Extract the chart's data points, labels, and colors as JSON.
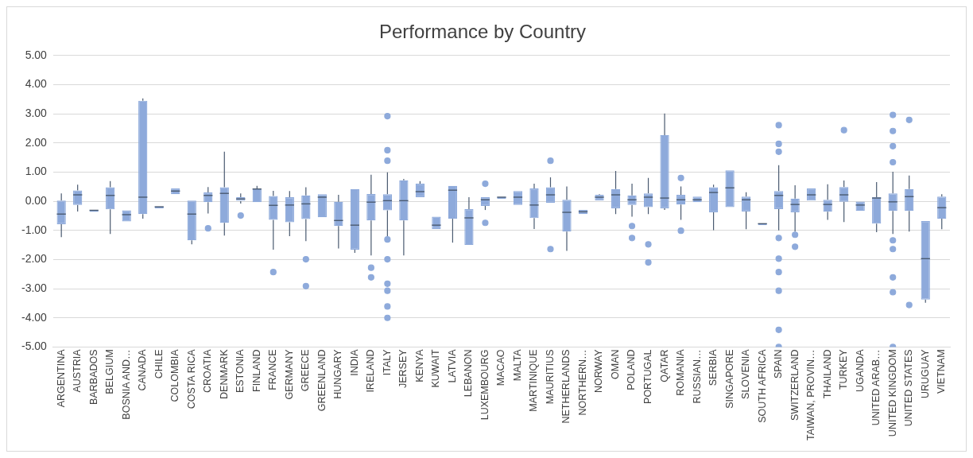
{
  "chart_data": {
    "type": "box",
    "title": "Performance by Country",
    "color": "#8eaadb",
    "categories": [
      "ARGENTINA",
      "AUSTRIA",
      "BARBADOS",
      "BELGIUM",
      "BOSNIA AND…",
      "CANADA",
      "CHILE",
      "COLOMBIA",
      "COSTA RICA",
      "CROATIA",
      "DENMARK",
      "ESTONIA",
      "FINLAND",
      "FRANCE",
      "GERMANY",
      "GREECE",
      "GREENLAND",
      "HUNGARY",
      "INDIA",
      "IRELAND",
      "ITALY",
      "JERSEY",
      "KENYA",
      "KUWAIT",
      "LATVIA",
      "LEBANON",
      "LUXEMBOURG",
      "MACAO",
      "MALTA",
      "MARTINIQUE",
      "MAURITIUS",
      "NETHERLANDS",
      "NORTHERN…",
      "NORWAY",
      "OMAN",
      "POLAND",
      "PORTUGAL",
      "QATAR",
      "ROMANIA",
      "RUSSIAN…",
      "SERBIA",
      "SINGAPORE",
      "SLOVENIA",
      "SOUTH AFRICA",
      "SPAIN",
      "SWITZERLAND",
      "TAIWAN, PROVIN…",
      "THAILAND",
      "TURKEY",
      "UGANDA",
      "UNITED ARAB…",
      "UNITED KINGDOM",
      "UNITED STATES",
      "URUGUAY",
      "VIETNAM"
    ],
    "boxes": [
      {
        "low": -1.23,
        "q1": -0.79,
        "median": -0.44,
        "q3": 0.02,
        "high": 0.27
      },
      {
        "low": -0.35,
        "q1": -0.13,
        "median": 0.22,
        "q3": 0.37,
        "high": 0.57
      },
      {
        "low": -0.31,
        "q1": -0.31,
        "median": -0.31,
        "q3": -0.31,
        "high": -0.31
      },
      {
        "low": -1.12,
        "q1": -0.28,
        "median": 0.2,
        "q3": 0.48,
        "high": 0.69
      },
      {
        "low": -0.69,
        "q1": -0.69,
        "median": -0.46,
        "q3": -0.31,
        "high": -0.31
      },
      {
        "low": -0.6,
        "q1": -0.44,
        "median": 0.14,
        "q3": 3.45,
        "high": 3.53
      },
      {
        "low": -0.19,
        "q1": -0.19,
        "median": -0.19,
        "q3": -0.19,
        "high": -0.19
      },
      {
        "low": 0.24,
        "q1": 0.24,
        "median": 0.35,
        "q3": 0.44,
        "high": 0.44
      },
      {
        "low": -1.48,
        "q1": -1.34,
        "median": -0.44,
        "q3": 0.02,
        "high": 0.02
      },
      {
        "low": -0.42,
        "q1": -0.03,
        "median": 0.2,
        "q3": 0.3,
        "high": 0.49,
        "outliers": [
          -0.93
        ]
      },
      {
        "low": -1.18,
        "q1": -0.74,
        "median": 0.27,
        "q3": 0.48,
        "high": 1.7
      },
      {
        "low": -0.08,
        "q1": 0,
        "median": 0.08,
        "q3": 0.14,
        "high": 0.27,
        "outliers": [
          -0.49
        ]
      },
      {
        "low": -0.03,
        "q1": -0.03,
        "median": 0.42,
        "q3": 0.42,
        "high": 0.53
      },
      {
        "low": -1.66,
        "q1": -0.64,
        "median": -0.14,
        "q3": 0.18,
        "high": 0.36,
        "outliers": [
          -2.43
        ]
      },
      {
        "low": -1.2,
        "q1": -0.72,
        "median": -0.13,
        "q3": 0.14,
        "high": 0.35
      },
      {
        "low": -1.37,
        "q1": -0.61,
        "median": -0.09,
        "q3": 0.2,
        "high": 0.48,
        "outliers": [
          -1.99,
          -2.91
        ]
      },
      {
        "low": -0.55,
        "q1": -0.55,
        "median": 0.14,
        "q3": 0.24,
        "high": 0.24
      },
      {
        "low": -1.62,
        "q1": -0.85,
        "median": -0.66,
        "q3": -0.02,
        "high": 0.22
      },
      {
        "low": -1.77,
        "q1": -1.66,
        "median": -0.82,
        "q3": 0.42,
        "high": 0.42
      },
      {
        "low": -1.86,
        "q1": -0.66,
        "median": -0.03,
        "q3": 0.25,
        "high": 0.91,
        "outliers": [
          -2.28,
          -2.61
        ]
      },
      {
        "low": -1.2,
        "q1": -0.31,
        "median": 0.02,
        "q3": 0.24,
        "high": 0.99,
        "outliers": [
          2.92,
          1.75,
          1.39,
          -1.31,
          -1.99,
          -2.83,
          -3.07,
          -3.61,
          -4.0
        ]
      },
      {
        "low": -1.86,
        "q1": -0.66,
        "median": 0.02,
        "q3": 0.72,
        "high": 0.77
      },
      {
        "low": 0.14,
        "q1": 0.14,
        "median": 0.33,
        "q3": 0.6,
        "high": 0.69
      },
      {
        "low": -0.95,
        "q1": -0.95,
        "median": -0.82,
        "q3": -0.53,
        "high": -0.53
      },
      {
        "low": -1.42,
        "q1": -0.6,
        "median": 0.38,
        "q3": 0.53,
        "high": 0.53
      },
      {
        "low": -1.5,
        "q1": -1.5,
        "median": -0.57,
        "q3": -0.27,
        "high": 0.14
      },
      {
        "low": -0.3,
        "q1": -0.16,
        "median": 0.05,
        "q3": 0.14,
        "high": 0.14,
        "outliers": [
          0.6,
          -0.74
        ]
      },
      {
        "low": 0.14,
        "q1": 0.14,
        "median": 0.14,
        "q3": 0.14,
        "high": 0.14
      },
      {
        "low": -0.13,
        "q1": -0.13,
        "median": 0.14,
        "q3": 0.35,
        "high": 0.35
      },
      {
        "low": -0.95,
        "q1": -0.58,
        "median": -0.13,
        "q3": 0.44,
        "high": 0.6
      },
      {
        "low": -0.05,
        "q1": -0.05,
        "median": 0.22,
        "q3": 0.48,
        "high": 0.82,
        "outliers": [
          1.39,
          -1.64
        ]
      },
      {
        "low": -1.7,
        "q1": -1.04,
        "median": -0.38,
        "q3": 0.05,
        "high": 0.51
      },
      {
        "low": -0.44,
        "q1": -0.44,
        "median": -0.36,
        "q3": -0.3,
        "high": -0.3
      },
      {
        "low": 0.03,
        "q1": 0.03,
        "median": 0.14,
        "q3": 0.22,
        "high": 0.24
      },
      {
        "low": -0.44,
        "q1": -0.24,
        "median": 0.22,
        "q3": 0.42,
        "high": 1.04
      },
      {
        "low": -0.53,
        "q1": -0.13,
        "median": 0.05,
        "q3": 0.2,
        "high": 0.6,
        "outliers": [
          -0.85,
          -1.26
        ]
      },
      {
        "low": -0.44,
        "q1": -0.2,
        "median": 0.14,
        "q3": 0.27,
        "high": 0.8,
        "outliers": [
          -1.48,
          -2.1
        ]
      },
      {
        "low": -0.3,
        "q1": -0.24,
        "median": 0.11,
        "q3": 2.27,
        "high": 3.01
      },
      {
        "low": -0.64,
        "q1": -0.11,
        "median": 0.05,
        "q3": 0.22,
        "high": 0.51,
        "outliers": [
          0.8,
          -1.01
        ]
      },
      {
        "low": -0.03,
        "q1": -0.03,
        "median": 0.05,
        "q3": 0.16,
        "high": 0.16
      },
      {
        "low": -0.99,
        "q1": -0.38,
        "median": 0.3,
        "q3": 0.48,
        "high": 0.57
      },
      {
        "low": -0.2,
        "q1": -0.2,
        "median": 0.46,
        "q3": 1.06,
        "high": 1.06
      },
      {
        "low": -0.96,
        "q1": -0.35,
        "median": 0.05,
        "q3": 0.16,
        "high": 0.31
      },
      {
        "low": -0.77,
        "q1": -0.77,
        "median": -0.77,
        "q3": -0.77,
        "high": -0.77
      },
      {
        "low": -1.0,
        "q1": -0.27,
        "median": 0.2,
        "q3": 0.35,
        "high": 1.24,
        "outliers": [
          2.61,
          1.97,
          1.7,
          -1.26,
          -1.97,
          -2.43,
          -3.07,
          -4.41,
          -5.0
        ]
      },
      {
        "low": -1.04,
        "q1": -0.38,
        "median": -0.11,
        "q3": 0.09,
        "high": 0.55,
        "outliers": [
          -1.15,
          -1.56
        ]
      },
      {
        "low": 0.02,
        "q1": 0.02,
        "median": 0.22,
        "q3": 0.44,
        "high": 0.44
      },
      {
        "low": -0.64,
        "q1": -0.36,
        "median": -0.11,
        "q3": 0.05,
        "high": 0.58
      },
      {
        "low": -0.71,
        "q1": -0.02,
        "median": 0.22,
        "q3": 0.49,
        "high": 0.71,
        "outliers": [
          2.44
        ]
      },
      {
        "low": -0.33,
        "q1": -0.33,
        "median": -0.13,
        "q3": 0,
        "high": 0
      },
      {
        "low": -1.06,
        "q1": -0.77,
        "median": 0.11,
        "q3": 0.14,
        "high": 0.66
      },
      {
        "low": -1.12,
        "q1": -0.33,
        "median": -0.02,
        "q3": 0.27,
        "high": 1.01,
        "outliers": [
          2.96,
          2.41,
          1.89,
          1.34,
          -1.34,
          -1.64,
          -2.61,
          -3.12,
          -5.0
        ]
      },
      {
        "low": -1.04,
        "q1": -0.33,
        "median": 0.16,
        "q3": 0.42,
        "high": 0.88,
        "outliers": [
          2.79,
          -3.56
        ]
      },
      {
        "low": -3.48,
        "q1": -3.37,
        "median": -1.97,
        "q3": -0.68,
        "high": -0.68
      },
      {
        "low": -0.96,
        "q1": -0.6,
        "median": -0.22,
        "q3": 0.16,
        "high": 0.24
      }
    ],
    "ylim": [
      -5,
      5
    ],
    "yticks": [
      {
        "value": -5,
        "label": "-5.00"
      },
      {
        "value": -4,
        "label": "-4.00"
      },
      {
        "value": -3,
        "label": "-3.00"
      },
      {
        "value": -2,
        "label": "-2.00"
      },
      {
        "value": -1,
        "label": "-1.00"
      },
      {
        "value": 0,
        "label": "0.00"
      },
      {
        "value": 1,
        "label": "1.00"
      },
      {
        "value": 2,
        "label": "2.00"
      },
      {
        "value": 3,
        "label": "3.00"
      },
      {
        "value": 4,
        "label": "4.00"
      },
      {
        "value": 5,
        "label": "5.00"
      }
    ],
    "grid": "y",
    "legend": false
  }
}
